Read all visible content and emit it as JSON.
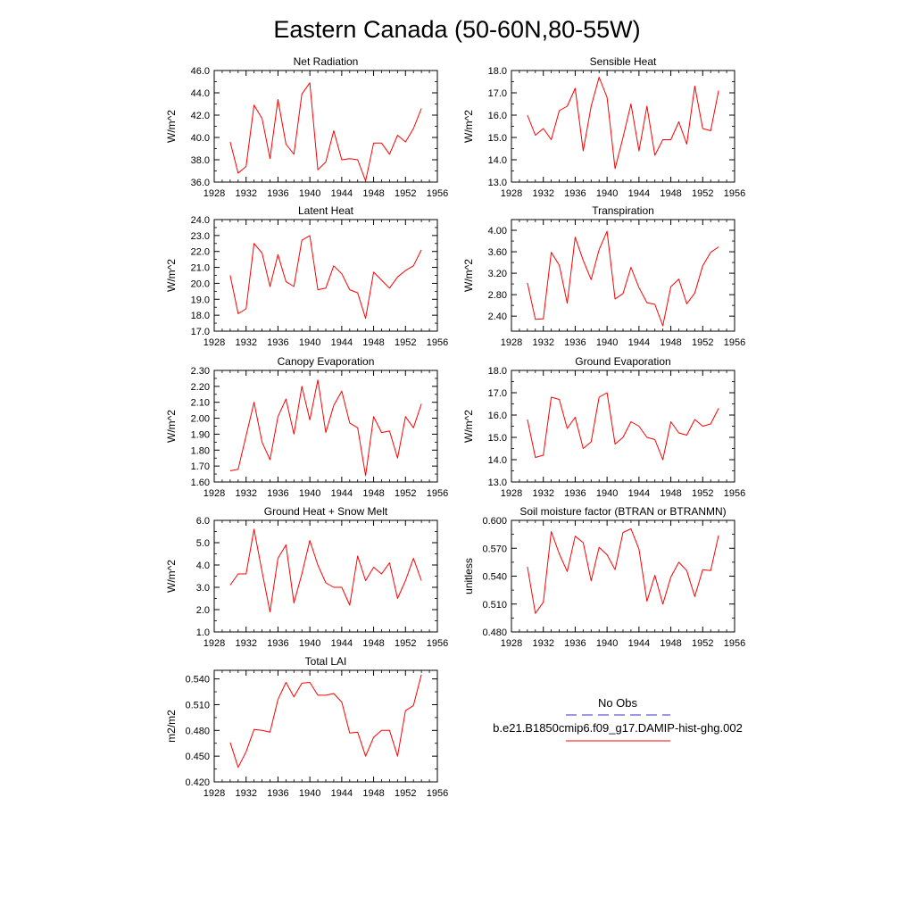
{
  "page": {
    "title": "Eastern Canada (50-60N,80-55W)"
  },
  "legend": {
    "items": [
      {
        "label": "No Obs",
        "color": "#3333cc",
        "dash": true
      },
      {
        "label": "b.e21.B1850cmip6.f09_g17.DAMIP-hist-ghg.002",
        "color": "#ff0000",
        "dash": false
      }
    ]
  },
  "chart_data": [
    {
      "type": "line",
      "title": "Net Radiation",
      "ylabel": "W/m^2",
      "xlim": [
        1928,
        1956
      ],
      "xticks": [
        1928,
        1932,
        1936,
        1940,
        1944,
        1948,
        1952,
        1956
      ],
      "ylim": [
        36.0,
        46.0
      ],
      "yticks": [
        "36.0",
        "38.0",
        "40.0",
        "42.0",
        "44.0",
        "46.0"
      ],
      "x": [
        1930,
        1931,
        1932,
        1933,
        1934,
        1935,
        1936,
        1937,
        1938,
        1939,
        1940,
        1941,
        1942,
        1943,
        1944,
        1945,
        1946,
        1947,
        1948,
        1949,
        1950,
        1951,
        1952,
        1953,
        1954
      ],
      "series": [
        {
          "color": "#ff0000",
          "values": [
            39.6,
            36.8,
            37.4,
            42.9,
            41.7,
            38.1,
            43.4,
            39.4,
            38.5,
            43.9,
            44.9,
            37.1,
            37.8,
            40.6,
            38.0,
            38.1,
            38.0,
            36.1,
            39.5,
            39.5,
            38.5,
            40.2,
            39.6,
            40.8,
            42.6
          ]
        }
      ]
    },
    {
      "type": "line",
      "title": "Sensible Heat",
      "ylabel": "W/m^2",
      "xlim": [
        1928,
        1956
      ],
      "xticks": [
        1928,
        1932,
        1936,
        1940,
        1944,
        1948,
        1952,
        1956
      ],
      "ylim": [
        13.0,
        18.0
      ],
      "yticks": [
        "13.0",
        "14.0",
        "15.0",
        "16.0",
        "17.0",
        "18.0"
      ],
      "x": [
        1930,
        1931,
        1932,
        1933,
        1934,
        1935,
        1936,
        1937,
        1938,
        1939,
        1940,
        1941,
        1942,
        1943,
        1944,
        1945,
        1946,
        1947,
        1948,
        1949,
        1950,
        1951,
        1952,
        1953,
        1954
      ],
      "series": [
        {
          "color": "#ff0000",
          "values": [
            16.0,
            15.1,
            15.4,
            14.9,
            16.2,
            16.4,
            17.2,
            14.4,
            16.4,
            17.7,
            16.8,
            13.6,
            15.0,
            16.5,
            14.4,
            16.4,
            14.2,
            14.9,
            14.9,
            15.7,
            14.7,
            17.3,
            15.4,
            15.3,
            17.1
          ]
        }
      ]
    },
    {
      "type": "line",
      "title": "Latent Heat",
      "ylabel": "W/m^2",
      "xlim": [
        1928,
        1956
      ],
      "xticks": [
        1928,
        1932,
        1936,
        1940,
        1944,
        1948,
        1952,
        1956
      ],
      "ylim": [
        17.0,
        24.0
      ],
      "yticks": [
        "17.0",
        "18.0",
        "19.0",
        "20.0",
        "21.0",
        "22.0",
        "23.0",
        "24.0"
      ],
      "x": [
        1930,
        1931,
        1932,
        1933,
        1934,
        1935,
        1936,
        1937,
        1938,
        1939,
        1940,
        1941,
        1942,
        1943,
        1944,
        1945,
        1946,
        1947,
        1948,
        1949,
        1950,
        1951,
        1952,
        1953,
        1954
      ],
      "series": [
        {
          "color": "#ff0000",
          "values": [
            20.5,
            18.1,
            18.4,
            22.5,
            21.9,
            19.8,
            21.8,
            20.1,
            19.8,
            22.7,
            23.0,
            19.6,
            19.7,
            21.1,
            20.6,
            19.6,
            19.4,
            17.8,
            20.7,
            20.2,
            19.7,
            20.4,
            20.8,
            21.1,
            22.1
          ]
        }
      ]
    },
    {
      "type": "line",
      "title": "Transpiration",
      "ylabel": "W/m^2",
      "xlim": [
        1928,
        1956
      ],
      "xticks": [
        1928,
        1932,
        1936,
        1940,
        1944,
        1948,
        1952,
        1956
      ],
      "ylim": [
        2.12,
        4.2
      ],
      "yticks": [
        "2.40",
        "2.80",
        "3.20",
        "3.60",
        "4.00"
      ],
      "ytick_values": [
        2.4,
        2.8,
        3.2,
        3.6,
        4.0
      ],
      "x": [
        1930,
        1931,
        1932,
        1933,
        1934,
        1935,
        1936,
        1937,
        1938,
        1939,
        1940,
        1941,
        1942,
        1943,
        1944,
        1945,
        1946,
        1947,
        1948,
        1949,
        1950,
        1951,
        1952,
        1953,
        1954
      ],
      "series": [
        {
          "color": "#ff0000",
          "values": [
            3.02,
            2.34,
            2.35,
            3.59,
            3.35,
            2.64,
            3.87,
            3.44,
            3.08,
            3.64,
            3.98,
            2.72,
            2.82,
            3.31,
            2.93,
            2.65,
            2.62,
            2.22,
            2.95,
            3.09,
            2.63,
            2.83,
            3.34,
            3.59,
            3.69
          ]
        }
      ]
    },
    {
      "type": "line",
      "title": "Canopy Evaporation",
      "ylabel": "W/m^2",
      "xlim": [
        1928,
        1956
      ],
      "xticks": [
        1928,
        1932,
        1936,
        1940,
        1944,
        1948,
        1952,
        1956
      ],
      "ylim": [
        1.6,
        2.3
      ],
      "yticks": [
        "1.60",
        "1.70",
        "1.80",
        "1.90",
        "2.00",
        "2.10",
        "2.20",
        "2.30"
      ],
      "x": [
        1930,
        1931,
        1932,
        1933,
        1934,
        1935,
        1936,
        1937,
        1938,
        1939,
        1940,
        1941,
        1942,
        1943,
        1944,
        1945,
        1946,
        1947,
        1948,
        1949,
        1950,
        1951,
        1952,
        1953,
        1954
      ],
      "series": [
        {
          "color": "#ff0000",
          "values": [
            1.67,
            1.68,
            1.89,
            2.1,
            1.85,
            1.74,
            2.01,
            2.12,
            1.9,
            2.2,
            1.99,
            2.24,
            1.91,
            2.08,
            2.17,
            1.97,
            1.94,
            1.64,
            2.01,
            1.91,
            1.92,
            1.75,
            2.01,
            1.94,
            2.09
          ]
        }
      ]
    },
    {
      "type": "line",
      "title": "Ground Evaporation",
      "ylabel": "W/m^2",
      "xlim": [
        1928,
        1956
      ],
      "xticks": [
        1928,
        1932,
        1936,
        1940,
        1944,
        1948,
        1952,
        1956
      ],
      "ylim": [
        13.0,
        18.0
      ],
      "yticks": [
        "13.0",
        "14.0",
        "15.0",
        "16.0",
        "17.0",
        "18.0"
      ],
      "x": [
        1930,
        1931,
        1932,
        1933,
        1934,
        1935,
        1936,
        1937,
        1938,
        1939,
        1940,
        1941,
        1942,
        1943,
        1944,
        1945,
        1946,
        1947,
        1948,
        1949,
        1950,
        1951,
        1952,
        1953,
        1954
      ],
      "series": [
        {
          "color": "#ff0000",
          "values": [
            15.8,
            14.1,
            14.2,
            16.8,
            16.7,
            15.4,
            15.9,
            14.5,
            14.8,
            16.8,
            17.0,
            14.7,
            15.0,
            15.7,
            15.5,
            15.0,
            14.9,
            14.0,
            15.7,
            15.2,
            15.1,
            15.8,
            15.5,
            15.6,
            16.3
          ]
        }
      ]
    },
    {
      "type": "line",
      "title": "Ground Heat + Snow Melt",
      "ylabel": "W/m^2",
      "xlim": [
        1928,
        1956
      ],
      "xticks": [
        1928,
        1932,
        1936,
        1940,
        1944,
        1948,
        1952,
        1956
      ],
      "ylim": [
        1.0,
        6.0
      ],
      "yticks": [
        "1.0",
        "2.0",
        "3.0",
        "4.0",
        "5.0",
        "6.0"
      ],
      "x": [
        1930,
        1931,
        1932,
        1933,
        1934,
        1935,
        1936,
        1937,
        1938,
        1939,
        1940,
        1941,
        1942,
        1943,
        1944,
        1945,
        1946,
        1947,
        1948,
        1949,
        1950,
        1951,
        1952,
        1953,
        1954
      ],
      "series": [
        {
          "color": "#ff0000",
          "values": [
            3.1,
            3.6,
            3.6,
            5.6,
            3.7,
            1.9,
            4.3,
            4.9,
            2.3,
            3.6,
            5.1,
            4.0,
            3.2,
            3.0,
            3.0,
            2.2,
            4.4,
            3.3,
            3.9,
            3.6,
            4.1,
            2.5,
            3.3,
            4.3,
            3.3
          ]
        }
      ]
    },
    {
      "type": "line",
      "title": "Soil moisture factor (BTRAN or BTRANMN)",
      "ylabel": "unitless",
      "xlim": [
        1928,
        1956
      ],
      "xticks": [
        1928,
        1932,
        1936,
        1940,
        1944,
        1948,
        1952,
        1956
      ],
      "ylim": [
        0.48,
        0.6
      ],
      "yticks": [
        "0.480",
        "0.510",
        "0.540",
        "0.570",
        "0.600"
      ],
      "ytick_values": [
        0.48,
        0.51,
        0.54,
        0.57,
        0.6
      ],
      "x": [
        1930,
        1931,
        1932,
        1933,
        1934,
        1935,
        1936,
        1937,
        1938,
        1939,
        1940,
        1941,
        1942,
        1943,
        1944,
        1945,
        1946,
        1947,
        1948,
        1949,
        1950,
        1951,
        1952,
        1953,
        1954
      ],
      "series": [
        {
          "color": "#ff0000",
          "values": [
            0.55,
            0.5,
            0.512,
            0.588,
            0.564,
            0.545,
            0.583,
            0.576,
            0.535,
            0.571,
            0.563,
            0.547,
            0.587,
            0.591,
            0.569,
            0.513,
            0.541,
            0.51,
            0.539,
            0.555,
            0.546,
            0.518,
            0.547,
            0.546,
            0.584
          ]
        }
      ]
    },
    {
      "type": "line",
      "title": "Total LAI",
      "ylabel": "m2/m2",
      "xlim": [
        1928,
        1956
      ],
      "xticks": [
        1928,
        1932,
        1936,
        1940,
        1944,
        1948,
        1952,
        1956
      ],
      "ylim": [
        0.42,
        0.55
      ],
      "yticks": [
        "0.420",
        "0.450",
        "0.480",
        "0.510",
        "0.540"
      ],
      "ytick_values": [
        0.42,
        0.45,
        0.48,
        0.51,
        0.54
      ],
      "x": [
        1930,
        1931,
        1932,
        1933,
        1934,
        1935,
        1936,
        1937,
        1938,
        1939,
        1940,
        1941,
        1942,
        1943,
        1944,
        1945,
        1946,
        1947,
        1948,
        1949,
        1950,
        1951,
        1952,
        1953,
        1954
      ],
      "series": [
        {
          "color": "#ff0000",
          "values": [
            0.466,
            0.437,
            0.455,
            0.481,
            0.48,
            0.478,
            0.516,
            0.536,
            0.519,
            0.535,
            0.536,
            0.521,
            0.521,
            0.523,
            0.513,
            0.477,
            0.478,
            0.45,
            0.472,
            0.48,
            0.48,
            0.45,
            0.503,
            0.509,
            0.545
          ]
        }
      ]
    }
  ]
}
